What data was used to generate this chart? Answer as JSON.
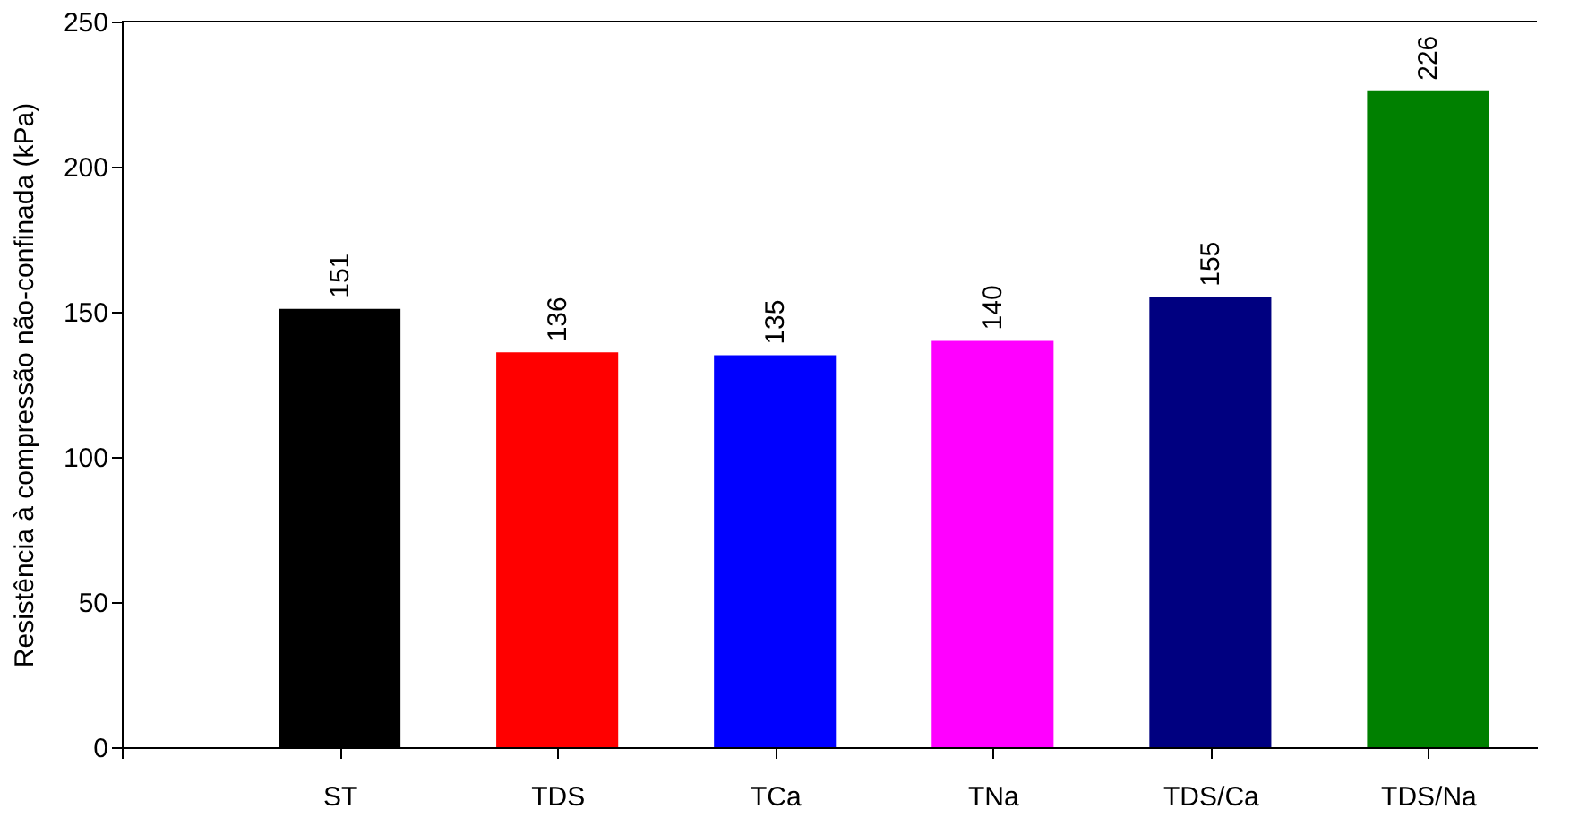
{
  "chart_data": {
    "type": "bar",
    "ylabel": "Resistência à compressão não-confinada (kPa)",
    "categories": [
      "ST",
      "TDS",
      "TCa",
      "TNa",
      "TDS/Ca",
      "TDS/Na"
    ],
    "values": [
      151,
      136,
      135,
      140,
      155,
      226
    ],
    "colors": [
      "#000000",
      "#ff0000",
      "#0000ff",
      "#ff00ff",
      "#000080",
      "#008000"
    ],
    "ylim": [
      0,
      250
    ],
    "yticks": [
      0,
      50,
      100,
      150,
      200,
      250
    ],
    "grid": false,
    "data_labels": true
  }
}
